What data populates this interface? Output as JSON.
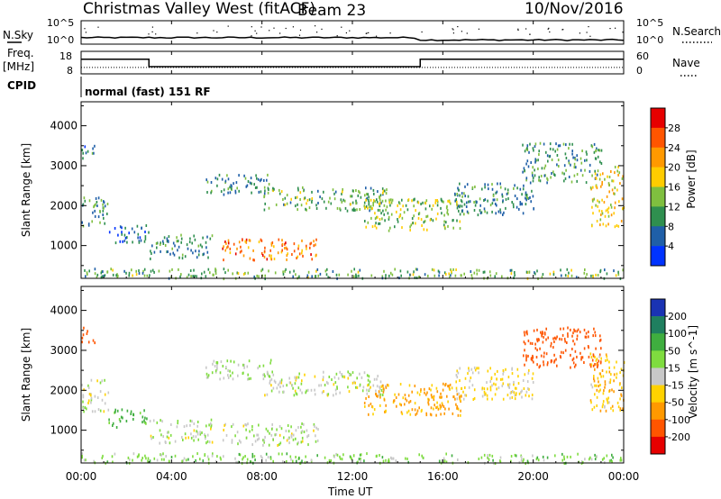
{
  "chart_data": {
    "type": "heatmap",
    "header": {
      "station_title": "Christmas Valley West (fitACF)",
      "beam_label": "Beam 23",
      "date_label": "10/Nov/2016"
    },
    "time_axis": {
      "xlabel": "Time UT",
      "xlim_hours": [
        0,
        24
      ],
      "tick_labels": [
        "00:00",
        "04:00",
        "08:00",
        "12:00",
        "16:00",
        "20:00",
        "00:00"
      ],
      "tick_hours": [
        0,
        4,
        8,
        12,
        16,
        20,
        24
      ]
    },
    "noise_panel": {
      "left_label": "N.Sky",
      "right_label": "N.Search",
      "left_ticks": [
        "10^5",
        "10^0"
      ],
      "right_ticks": [
        "10^5",
        "10^0"
      ],
      "level_fraction": [
        0.15,
        0.25
      ],
      "transition_hour": 15
    },
    "freq_panel": {
      "left_label_line1": "Freq.",
      "left_label_line2": "[MHz]",
      "left_ticks": [
        18,
        8
      ],
      "right_label": "Nave",
      "right_ticks": [
        60,
        0
      ],
      "freq_steps": [
        {
          "from": 0,
          "to": 3,
          "mhz": 14.5
        },
        {
          "from": 3,
          "to": 15,
          "mhz": 11.2
        },
        {
          "from": 15,
          "to": 24,
          "mhz": 14.5
        }
      ],
      "nave_level": 17
    },
    "cpid_panel": {
      "label": "CPID",
      "program_text": "normal (fast) 151 RF"
    },
    "power_panel": {
      "ylabel": "Slant Range [km]",
      "ylim": [
        180,
        4600
      ],
      "yticks": [
        1000,
        2000,
        3000,
        4000
      ],
      "colorbar_label": "Power [dB]",
      "colorbar_ticks": [
        "28",
        "24",
        "20",
        "16",
        "12",
        "8",
        "4"
      ],
      "colorbar_colors": [
        "#e60000",
        "#ff5500",
        "#ff9900",
        "#ffcc00",
        "#7fbf3f",
        "#2f8f4f",
        "#1f5fa8",
        "#0033ff"
      ]
    },
    "velocity_panel": {
      "ylabel": "Slant Range [km]",
      "ylim": [
        180,
        4600
      ],
      "yticks": [
        1000,
        2000,
        3000,
        4000
      ],
      "colorbar_label": "Velocity [m s^-1]",
      "colorbar_ticks": [
        "200",
        "100",
        "50",
        "15",
        "-15",
        "-50",
        "-100",
        "-200"
      ],
      "colorbar_colors": [
        "#1a33b3",
        "#1f7f5f",
        "#3fae3f",
        "#7fdc3f",
        "#c8c8c8",
        "#ffd200",
        "#ff9900",
        "#ff5500",
        "#e60000"
      ]
    },
    "echo_regions": [
      {
        "t0": 0.0,
        "t1": 1.2,
        "r0": 1500,
        "r1": 2300,
        "power": 10,
        "velocity": 0
      },
      {
        "t0": 0.0,
        "t1": 0.6,
        "r0": 3200,
        "r1": 3600,
        "power": 8,
        "velocity": -150
      },
      {
        "t0": 1.2,
        "t1": 3.0,
        "r0": 1100,
        "r1": 1550,
        "power": 6,
        "velocity": 60
      },
      {
        "t0": 3.0,
        "t1": 5.8,
        "r0": 700,
        "r1": 1300,
        "power": 9,
        "velocity": 10
      },
      {
        "t0": 6.2,
        "t1": 10.5,
        "r0": 650,
        "r1": 1200,
        "power": 24,
        "velocity": 10
      },
      {
        "t0": 5.5,
        "t1": 8.5,
        "r0": 2300,
        "r1": 2800,
        "power": 9,
        "velocity": 20
      },
      {
        "t0": 8.0,
        "t1": 13.5,
        "r0": 1900,
        "r1": 2500,
        "power": 12,
        "velocity": 5
      },
      {
        "t0": 12.5,
        "t1": 16.8,
        "r0": 1400,
        "r1": 2200,
        "power": 14,
        "velocity": -60
      },
      {
        "t0": 16.5,
        "t1": 20.0,
        "r0": 1800,
        "r1": 2600,
        "power": 9,
        "velocity": -20
      },
      {
        "t0": 19.5,
        "t1": 23.0,
        "r0": 2600,
        "r1": 3600,
        "power": 10,
        "velocity": -150
      },
      {
        "t0": 22.5,
        "t1": 24.0,
        "r0": 1500,
        "r1": 3000,
        "power": 18,
        "velocity": -40
      },
      {
        "t0": 0.0,
        "t1": 24.0,
        "r0": 200,
        "r1": 450,
        "power": 12,
        "velocity": 30
      }
    ]
  }
}
